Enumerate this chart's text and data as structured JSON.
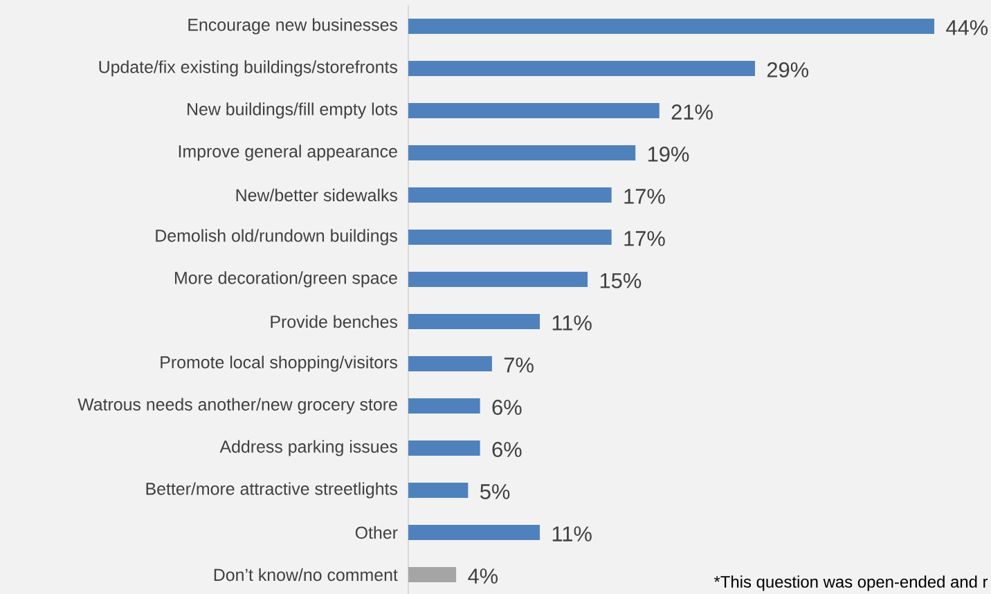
{
  "chart_data": {
    "type": "bar",
    "orientation": "horizontal",
    "categories": [
      "Encourage new businesses",
      "Update/fix existing buildings/storefronts",
      "New buildings/fill empty lots",
      "Improve general appearance",
      "New/better sidewalks",
      "Demolish old/rundown buildings",
      "More decoration/green space",
      "Provide benches",
      "Promote local shopping/visitors",
      "Watrous needs another/new grocery store",
      "Address parking issues",
      "Better/more attractive streetlights",
      "Other",
      "Don’t know/no comment"
    ],
    "values": [
      44,
      29,
      21,
      19,
      17,
      17,
      15,
      11,
      7,
      6,
      6,
      5,
      11,
      4
    ],
    "value_labels": [
      "44%",
      "29%",
      "21%",
      "19%",
      "17%",
      "17%",
      "15%",
      "11%",
      "7%",
      "6%",
      "6%",
      "5%",
      "11%",
      "4%"
    ],
    "colors": [
      "#4f81bd",
      "#4f81bd",
      "#4f81bd",
      "#4f81bd",
      "#4f81bd",
      "#4f81bd",
      "#4f81bd",
      "#4f81bd",
      "#4f81bd",
      "#4f81bd",
      "#4f81bd",
      "#4f81bd",
      "#4f81bd",
      "#a5a5a5"
    ],
    "annotations": [
      "*This question was open-ended and r"
    ]
  }
}
